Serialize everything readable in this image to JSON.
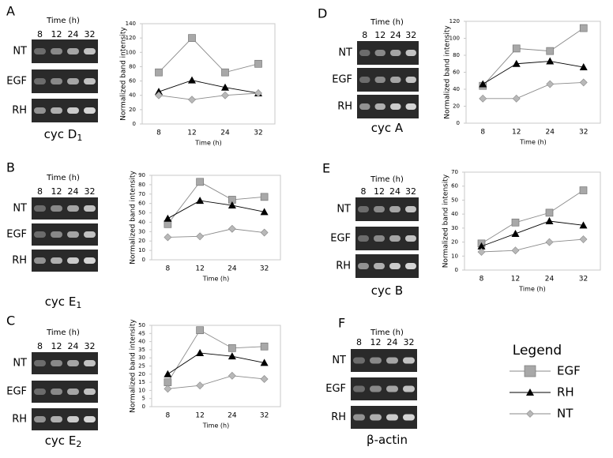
{
  "chart_data": [
    {
      "type": "line",
      "categories": [
        8,
        12,
        24,
        32
      ],
      "x_label": "Time (h)",
      "y_label": "Normalized band intensity",
      "ylim": [
        0,
        140
      ],
      "yticks": [
        0,
        20,
        40,
        60,
        80,
        100,
        120,
        140
      ],
      "grid": false,
      "series": [
        {
          "name": "EGF",
          "color": "#a8a8a8",
          "marker": "square",
          "values": [
            72,
            120,
            72,
            84
          ]
        },
        {
          "name": "RH",
          "color": "#000000",
          "marker": "triangle",
          "values": [
            45,
            61,
            51,
            43
          ]
        },
        {
          "name": "NT",
          "color": "#b8b8b8",
          "marker": "diamond",
          "values": [
            40,
            34,
            40,
            43
          ]
        }
      ]
    },
    {
      "type": "line",
      "categories": [
        8,
        12,
        24,
        32
      ],
      "x_label": "Time (h)",
      "y_label": "Normalized band intensity",
      "ylim": [
        0,
        90
      ],
      "yticks": [
        0,
        10,
        20,
        30,
        40,
        50,
        60,
        70,
        80,
        90
      ],
      "grid": false,
      "series": [
        {
          "name": "EGF",
          "color": "#a8a8a8",
          "marker": "square",
          "values": [
            38,
            83,
            64,
            67
          ]
        },
        {
          "name": "RH",
          "color": "#000000",
          "marker": "triangle",
          "values": [
            44,
            63,
            58,
            51
          ]
        },
        {
          "name": "NT",
          "color": "#b8b8b8",
          "marker": "diamond",
          "values": [
            24,
            25,
            33,
            29
          ]
        }
      ]
    },
    {
      "type": "line",
      "categories": [
        8,
        12,
        24,
        32
      ],
      "x_label": "Time (h)",
      "y_label": "Normalized band intensity",
      "ylim": [
        0,
        50
      ],
      "yticks": [
        0,
        5,
        10,
        15,
        20,
        25,
        30,
        35,
        40,
        45,
        50
      ],
      "grid": false,
      "series": [
        {
          "name": "EGF",
          "color": "#a8a8a8",
          "marker": "square",
          "values": [
            15,
            47,
            36,
            37
          ]
        },
        {
          "name": "RH",
          "color": "#000000",
          "marker": "triangle",
          "values": [
            20,
            33,
            31,
            27
          ]
        },
        {
          "name": "NT",
          "color": "#b8b8b8",
          "marker": "diamond",
          "values": [
            11,
            13,
            19,
            17
          ]
        }
      ]
    },
    {
      "type": "line",
      "categories": [
        8,
        12,
        24,
        32
      ],
      "x_label": "Time (h)",
      "y_label": "Normalized band intensity",
      "ylim": [
        0,
        120
      ],
      "yticks": [
        0,
        20,
        40,
        60,
        80,
        100,
        120
      ],
      "grid": false,
      "series": [
        {
          "name": "EGF",
          "color": "#a8a8a8",
          "marker": "square",
          "values": [
            44,
            88,
            85,
            112
          ]
        },
        {
          "name": "RH",
          "color": "#000000",
          "marker": "triangle",
          "values": [
            46,
            70,
            73,
            66
          ]
        },
        {
          "name": "NT",
          "color": "#b8b8b8",
          "marker": "diamond",
          "values": [
            29,
            29,
            46,
            48
          ]
        }
      ]
    },
    {
      "type": "line",
      "categories": [
        8,
        12,
        24,
        32
      ],
      "x_label": "Time (h)",
      "y_label": "Normalized band intensity",
      "ylim": [
        0,
        70
      ],
      "yticks": [
        0,
        10,
        20,
        30,
        40,
        50,
        60,
        70
      ],
      "grid": false,
      "series": [
        {
          "name": "EGF",
          "color": "#a8a8a8",
          "marker": "square",
          "values": [
            19,
            34,
            41,
            57
          ]
        },
        {
          "name": "RH",
          "color": "#000000",
          "marker": "triangle",
          "values": [
            17,
            26,
            35,
            32
          ]
        },
        {
          "name": "NT",
          "color": "#b8b8b8",
          "marker": "diamond",
          "values": [
            13,
            14,
            20,
            22
          ]
        }
      ]
    }
  ],
  "panels": [
    {
      "letter": "A",
      "time_label": "Time (h)",
      "times": [
        "8",
        "12",
        "24",
        "32"
      ],
      "rows": [
        "NT",
        "EGF",
        "RH"
      ],
      "label": "cyc D",
      "sub": "1"
    },
    {
      "letter": "B",
      "time_label": "Time (h)",
      "times": [
        "8",
        "12",
        "24",
        "32"
      ],
      "rows": [
        "NT",
        "EGF",
        "RH"
      ],
      "label": "cyc E",
      "sub": "1"
    },
    {
      "letter": "C",
      "time_label": "Time (h)",
      "times": [
        "8",
        "12",
        "24",
        "32"
      ],
      "rows": [
        "NT",
        "EGF",
        "RH"
      ],
      "label": "cyc E",
      "sub": "2"
    },
    {
      "letter": "D",
      "time_label": "Time (h)",
      "times": [
        "8",
        "12",
        "24",
        "32"
      ],
      "rows": [
        "NT",
        "EGF",
        "RH"
      ],
      "label": "cyc A"
    },
    {
      "letter": "E",
      "time_label": "Time (h)",
      "times": [
        "8",
        "12",
        "24",
        "32"
      ],
      "rows": [
        "NT",
        "EGF",
        "RH"
      ],
      "label": "cyc B"
    },
    {
      "letter": "F",
      "time_label": "Time (h)",
      "times": [
        "8",
        "12",
        "24",
        "32"
      ],
      "rows": [
        "NT",
        "EGF",
        "RH"
      ],
      "label": "β-actin"
    }
  ],
  "legend": {
    "title": "Legend"
  }
}
